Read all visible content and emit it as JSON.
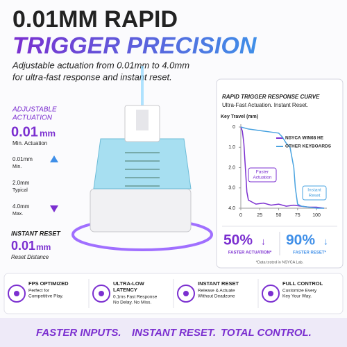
{
  "header": {
    "title_line1": "0.01MM RAPID",
    "title_line2": "TRIGGER PRECISION",
    "subtitle_lines": [
      "Adjustable actuation from 0.01mm to 4.0mm",
      "for ultra-fast response and instant reset."
    ]
  },
  "actuation": {
    "label_lines": [
      "ADJUSTABLE",
      "ACTUATION"
    ],
    "value": "0.01",
    "unit": "mm",
    "caption": "Min. Actuation",
    "scale": [
      {
        "value": "0.01mm",
        "caption": "Min."
      },
      {
        "value": "2.0mm",
        "caption": "Typical"
      },
      {
        "value": "4.0mm",
        "caption": "Max."
      }
    ]
  },
  "reset": {
    "label": "INSTANT RESET",
    "value": "0.01",
    "unit": "mm",
    "caption": "Reset Distance"
  },
  "chart": {
    "type": "line",
    "title": "RAPID TRIGGER RESPONSE CURVE",
    "subtitle": "Ultra-Fast Actuation. Instant Reset.",
    "y_label": "Key Travel (mm)",
    "xlim": [
      0,
      110
    ],
    "ylim": [
      0,
      4
    ],
    "y_inverted": true,
    "xticks": [
      0,
      25,
      50,
      75,
      100
    ],
    "yticks": [
      0,
      {
        "value": 1,
        "label": "1.0"
      },
      {
        "value": 2,
        "label": "2.0"
      },
      {
        "value": 3,
        "label": "3.0"
      },
      {
        "value": 4,
        "label": "4.0"
      }
    ],
    "series": [
      {
        "name": "NSYCA WIN68 HE",
        "color": "#7b2fd0",
        "x": [
          0,
          2,
          4,
          6,
          8,
          10,
          15,
          20,
          30,
          40,
          50,
          60,
          70,
          80,
          90,
          100,
          110
        ],
        "values": [
          0,
          0.2,
          0.8,
          2.0,
          3.2,
          3.6,
          3.7,
          3.8,
          3.75,
          3.85,
          3.8,
          3.9,
          3.85,
          3.9,
          3.95,
          3.95,
          4.0
        ]
      },
      {
        "name": "OTHER KEYBOARDS",
        "color": "#4aa3e0",
        "x": [
          0,
          10,
          20,
          30,
          40,
          50,
          55,
          60,
          65,
          70,
          72,
          75,
          80,
          90,
          100,
          110
        ],
        "values": [
          0,
          0.1,
          0.15,
          0.2,
          0.25,
          0.3,
          0.5,
          0.8,
          1.0,
          2.0,
          3.0,
          3.8,
          3.9,
          3.95,
          4.0,
          4.0
        ]
      }
    ],
    "annotations": [
      {
        "text_lines": [
          "Faster",
          "Actuation"
        ]
      },
      {
        "text_lines": [
          "Instant",
          "Reset"
        ]
      }
    ]
  },
  "stats": [
    {
      "value": "50%",
      "arrow": "↓",
      "label": "FASTER ACTUATION*"
    },
    {
      "value": "90%",
      "arrow": "↓",
      "label": "FASTER RESET*"
    }
  ],
  "stats_note": "*Data tested in NSYCA Lab.",
  "features": [
    {
      "title_lines": [
        "FPS OPTIMIZED"
      ],
      "text_lines": [
        "Perfect for",
        "Competitive Play."
      ]
    },
    {
      "title_lines": [
        "ULTRA-LOW",
        "LATENCY"
      ],
      "text_lines": [
        "0.1ms Fast Response",
        "No Delay. No Miss."
      ]
    },
    {
      "title_lines": [
        "INSTANT RESET"
      ],
      "text_lines": [
        "Release & Actuate",
        "Without Deadzone"
      ]
    },
    {
      "title_lines": [
        "FULL CONTROL"
      ],
      "text_lines": [
        "Customize Every",
        "Key Your Way."
      ]
    }
  ],
  "footer": {
    "parts": [
      "FASTER INPUTS.",
      "INSTANT RESET.",
      "TOTAL CONTROL."
    ]
  }
}
